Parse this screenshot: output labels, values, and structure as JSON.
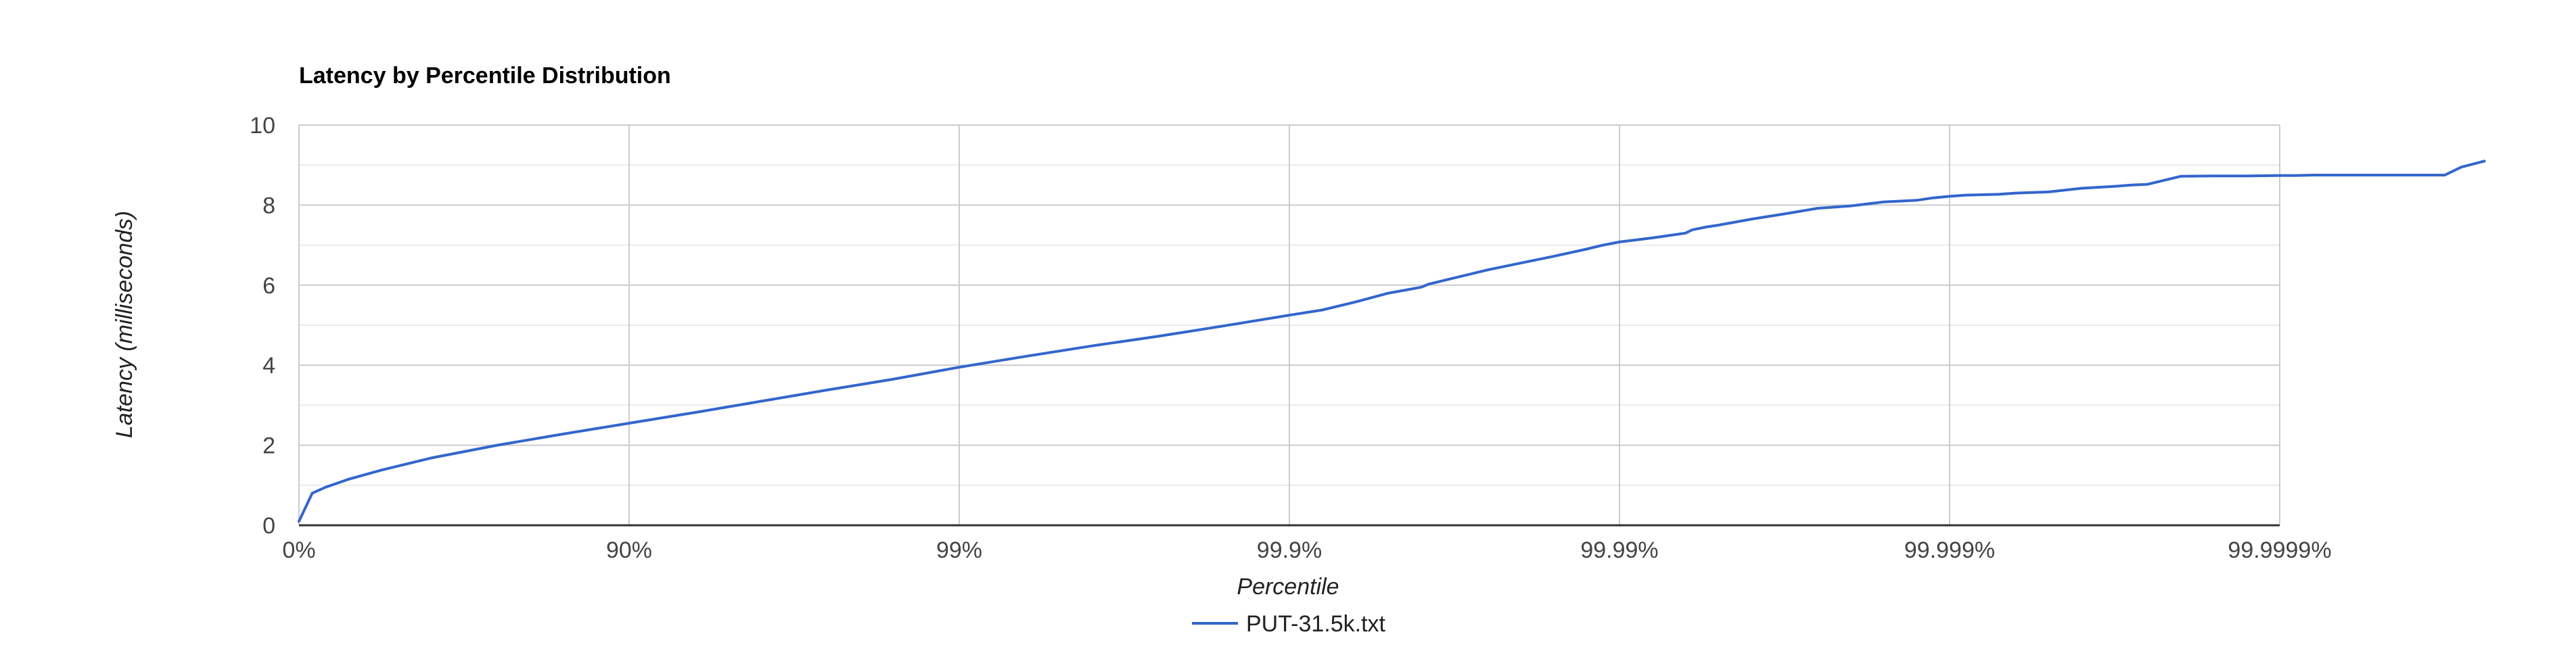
{
  "chart_data": {
    "type": "line",
    "title": "Latency by Percentile Distribution",
    "xlabel": "Percentile",
    "ylabel": "Latency (milliseconds)",
    "ylim": [
      0,
      10
    ],
    "y_ticks": [
      "0",
      "2",
      "4",
      "6",
      "8",
      "10"
    ],
    "x_scale": "log-inverse-percentile",
    "x_ticks": [
      "0%",
      "90%",
      "99%",
      "99.9%",
      "99.99%",
      "99.999%",
      "99.9999%"
    ],
    "grid": true,
    "legend_position": "bottom",
    "series": [
      {
        "name": "PUT-31.5k.txt",
        "color": "#3366cc",
        "x_nines": [
          0.0,
          0.04,
          0.08,
          0.15,
          0.25,
          0.4,
          0.6,
          0.8,
          1.0,
          1.2,
          1.4,
          1.6,
          1.8,
          2.0,
          2.2,
          2.4,
          2.6,
          2.8,
          3.0,
          3.1,
          3.2,
          3.3,
          3.4,
          3.42,
          3.5,
          3.6,
          3.7,
          3.8,
          3.9,
          3.95,
          4.0,
          4.1,
          4.2,
          4.22,
          4.26,
          4.3,
          4.4,
          4.5,
          4.6,
          4.65,
          4.7,
          4.8,
          4.9,
          4.95,
          5.0,
          5.05,
          5.15,
          5.2,
          5.3,
          5.4,
          5.5,
          5.55,
          5.6,
          5.7,
          5.8,
          5.9,
          6.0,
          6.05,
          6.1,
          6.2,
          6.3,
          6.45,
          6.5,
          6.55,
          6.62
        ],
        "values": [
          0.1,
          0.8,
          0.95,
          1.15,
          1.38,
          1.68,
          2.0,
          2.28,
          2.55,
          2.82,
          3.1,
          3.38,
          3.65,
          3.95,
          4.22,
          4.48,
          4.72,
          4.98,
          5.25,
          5.38,
          5.58,
          5.8,
          5.95,
          6.02,
          6.18,
          6.38,
          6.55,
          6.72,
          6.9,
          7.0,
          7.08,
          7.18,
          7.3,
          7.38,
          7.45,
          7.5,
          7.65,
          7.78,
          7.92,
          7.95,
          7.98,
          8.08,
          8.12,
          8.18,
          8.22,
          8.25,
          8.27,
          8.3,
          8.33,
          8.42,
          8.47,
          8.5,
          8.52,
          8.72,
          8.73,
          8.73,
          8.74,
          8.74,
          8.75,
          8.75,
          8.75,
          8.75,
          8.75,
          8.95,
          9.1
        ]
      }
    ]
  }
}
